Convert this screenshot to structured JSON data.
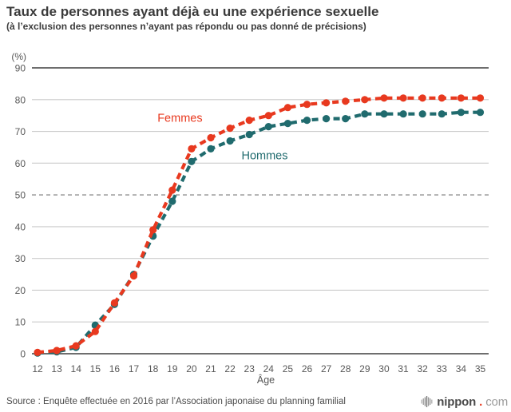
{
  "header": {
    "title": "Taux de personnes ayant déjà eu une expérience sexuelle",
    "subtitle": "(à l’exclusion des personnes n’ayant pas répondu ou pas donné de précisions)"
  },
  "chart_data": {
    "type": "line",
    "x": [
      12,
      13,
      14,
      15,
      16,
      17,
      18,
      19,
      20,
      21,
      22,
      23,
      24,
      25,
      26,
      27,
      28,
      29,
      30,
      31,
      32,
      33,
      34,
      35
    ],
    "xlabel": "Âge",
    "yunit": "(%)",
    "ylim": [
      0,
      90
    ],
    "yticks": [
      0,
      10,
      20,
      30,
      40,
      50,
      60,
      70,
      80,
      90
    ],
    "dashed_reference_y": 50,
    "grid": true,
    "line_style": "dashed-with-dots",
    "legend_position": "inline-labels",
    "series": [
      {
        "name": "Femmes",
        "color": "#e8391f",
        "label_x": 19.4,
        "label_y": 74.3,
        "values": [
          0.4,
          1,
          2.5,
          7,
          16,
          24.5,
          39,
          51.5,
          64.5,
          68,
          71,
          73.5,
          75,
          77.5,
          78.5,
          79,
          79.5,
          80,
          80.5,
          80.5,
          80.5,
          80.5,
          80.5,
          80.5
        ]
      },
      {
        "name": "Hommes",
        "color": "#206b6e",
        "label_x": 23.8,
        "label_y": 62.5,
        "values": [
          0.2,
          0.6,
          2,
          9,
          15.5,
          25,
          37,
          48,
          60.5,
          64.5,
          67,
          69,
          71.5,
          72.5,
          73.5,
          74,
          74,
          75.5,
          75.5,
          75.5,
          75.5,
          75.5,
          76,
          76
        ]
      }
    ],
    "axis_colors": {
      "edge_line": "#3f3f3f",
      "grid_line": "#cbcbcb",
      "reference_line": "#757575",
      "tick_text": "#575757"
    }
  },
  "footer": {
    "source": "Source : Enquête effectuée en 2016 par l’Association japonaise du planning familial",
    "logo_text": "nippon",
    "logo_dot": ".",
    "logo_tld": "com"
  }
}
